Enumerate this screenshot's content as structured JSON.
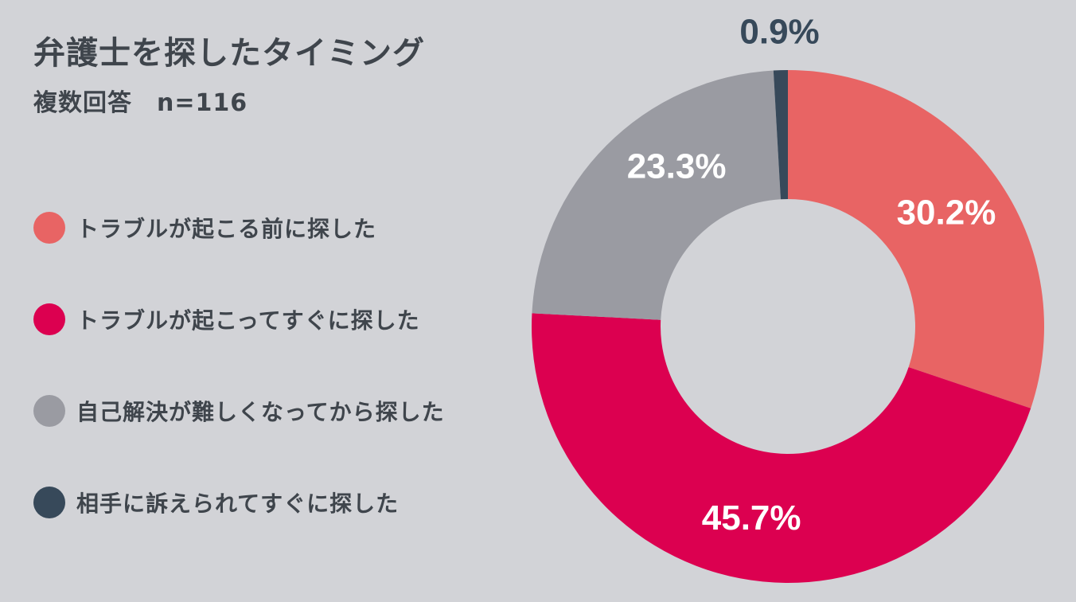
{
  "header": {
    "title": "弁護士を探したタイミング",
    "subtitle": "複数回答　n=116"
  },
  "chart_data": {
    "type": "pie",
    "variant": "donut",
    "title": "弁護士を探したタイミング",
    "subtitle": "複数回答　n=116",
    "legend_placement": "left",
    "series": [
      {
        "name": "トラブルが起こる前に探した",
        "value": 30.2,
        "label": "30.2%",
        "color": "#e86464",
        "label_color": "#ffffff"
      },
      {
        "name": "トラブルが起こってすぐに探した",
        "value": 45.7,
        "label": "45.7%",
        "color": "#dc0050",
        "label_color": "#ffffff"
      },
      {
        "name": "自己解決が難しくなってから探した",
        "value": 23.3,
        "label": "23.3%",
        "color": "#9a9ba2",
        "label_color": "#ffffff"
      },
      {
        "name": "相手に訴えられてすぐに探した",
        "value": 0.9,
        "label": "0.9%",
        "color": "#37495a",
        "label_color": "#37495a"
      }
    ]
  }
}
